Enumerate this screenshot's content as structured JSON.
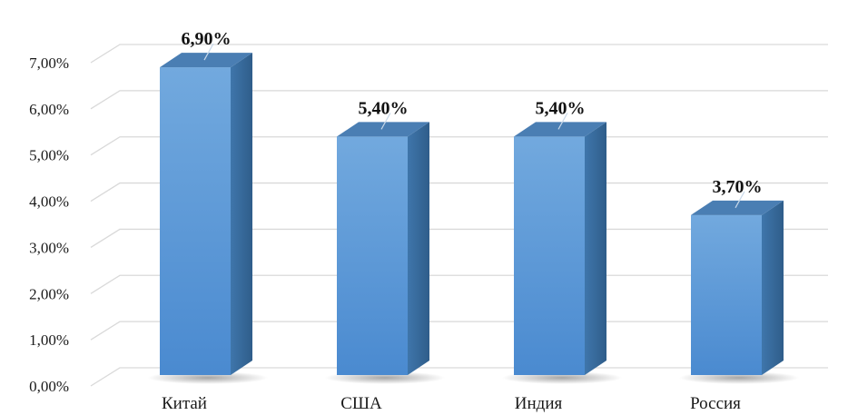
{
  "chart_data": {
    "type": "bar",
    "style": "3d-column",
    "categories": [
      "Китай",
      "США",
      "Индия",
      "Россия"
    ],
    "values": [
      6.9,
      5.4,
      5.4,
      3.7
    ],
    "data_labels": [
      "6,90%",
      "5,40%",
      "5,40%",
      "3,70%"
    ],
    "y_ticks": [
      0,
      1,
      2,
      3,
      4,
      5,
      6,
      7
    ],
    "y_tick_labels": [
      "0,00%",
      "1,00%",
      "2,00%",
      "3,00%",
      "4,00%",
      "5,00%",
      "6,00%",
      "7,00%"
    ],
    "ylim": [
      0,
      7.0
    ],
    "grid": true,
    "legend": "none",
    "colors": {
      "bar_front": "#5b9bd5",
      "bar_front_light": "#72a9de",
      "bar_side": "#3a6c9c",
      "bar_top": "#4a7eb3",
      "grid": "#d9d9d9"
    }
  }
}
